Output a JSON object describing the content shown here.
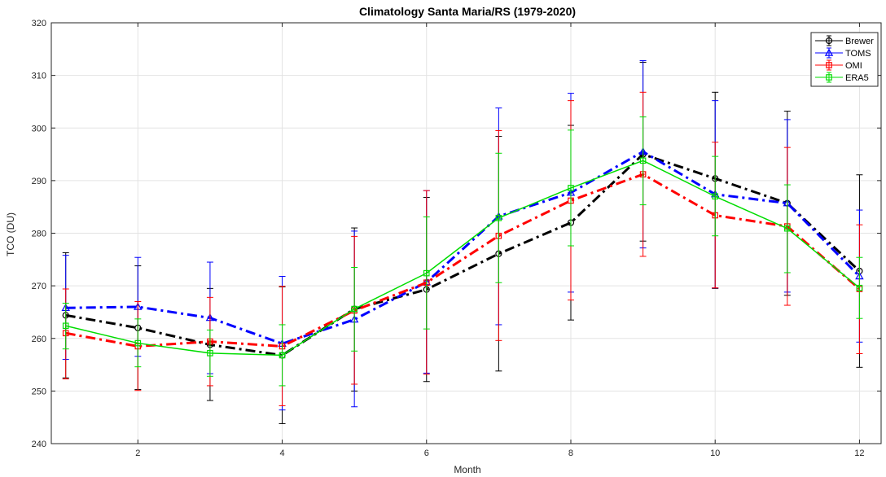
{
  "chart_data": {
    "type": "line",
    "title": "Climatology Santa Maria/RS (1979-2020)",
    "xlabel": "Month",
    "ylabel": "TCO (DU)",
    "xlim": [
      0.8,
      12.3
    ],
    "ylim": [
      240,
      320
    ],
    "xticks": [
      2,
      4,
      6,
      8,
      10,
      12
    ],
    "yticks": [
      240,
      250,
      260,
      270,
      280,
      290,
      300,
      310,
      320
    ],
    "grid": true,
    "legend_position": "top-right",
    "x": [
      1,
      2,
      3,
      4,
      5,
      6,
      7,
      8,
      9,
      10,
      11,
      12
    ],
    "series": [
      {
        "name": "Brewer",
        "color": "#000000",
        "line_style": "dash-dot",
        "line_width": 3,
        "marker": "circle",
        "values": [
          264.4,
          262.0,
          258.8,
          256.8,
          265.6,
          269.3,
          276.1,
          282.0,
          295.0,
          290.4,
          285.7,
          272.8
        ],
        "err_low": [
          252.5,
          250.3,
          248.2,
          243.8,
          250.0,
          251.8,
          253.8,
          263.5,
          278.5,
          269.5,
          268.2,
          254.5
        ],
        "err_high": [
          276.3,
          273.8,
          269.5,
          269.8,
          281.0,
          286.8,
          298.4,
          300.5,
          312.5,
          306.8,
          303.2,
          291.1
        ]
      },
      {
        "name": "TOMS",
        "color": "#0000ff",
        "line_style": "dash-dot",
        "line_width": 3,
        "marker": "triangle",
        "values": [
          265.8,
          266.0,
          263.9,
          259.0,
          263.6,
          270.7,
          283.2,
          287.7,
          295.5,
          287.4,
          285.7,
          271.8
        ],
        "err_low": [
          256.0,
          256.6,
          253.3,
          246.4,
          247.0,
          253.4,
          262.6,
          268.8,
          277.2,
          269.6,
          268.8,
          259.3
        ],
        "err_high": [
          275.8,
          275.4,
          274.5,
          271.8,
          280.4,
          288.1,
          303.8,
          306.6,
          312.8,
          305.2,
          301.6,
          284.4
        ]
      },
      {
        "name": "OMI",
        "color": "#ff0000",
        "line_style": "dash-dot",
        "line_width": 3,
        "marker": "square",
        "values": [
          261.0,
          258.5,
          259.4,
          258.5,
          265.3,
          270.6,
          279.5,
          286.2,
          291.2,
          283.4,
          281.3,
          269.4
        ],
        "err_low": [
          252.3,
          250.1,
          251.0,
          247.2,
          251.3,
          253.2,
          259.6,
          267.3,
          275.6,
          269.6,
          266.3,
          257.1
        ],
        "err_high": [
          269.4,
          267.0,
          267.8,
          269.9,
          279.4,
          288.1,
          299.5,
          305.2,
          306.8,
          297.3,
          296.3,
          281.6
        ]
      },
      {
        "name": "ERA5",
        "color": "#00dd00",
        "line_style": "solid",
        "line_width": 1.5,
        "marker": "square",
        "values": [
          262.4,
          259.1,
          257.2,
          256.8,
          265.6,
          272.4,
          282.9,
          288.6,
          293.8,
          287.0,
          280.9,
          269.6
        ],
        "err_low": [
          258.0,
          254.6,
          252.8,
          251.0,
          257.6,
          261.8,
          270.6,
          277.6,
          285.4,
          279.5,
          272.5,
          263.8
        ],
        "err_high": [
          266.7,
          263.7,
          261.6,
          262.6,
          273.5,
          283.1,
          295.2,
          299.6,
          302.1,
          294.6,
          289.2,
          275.4
        ]
      }
    ]
  }
}
